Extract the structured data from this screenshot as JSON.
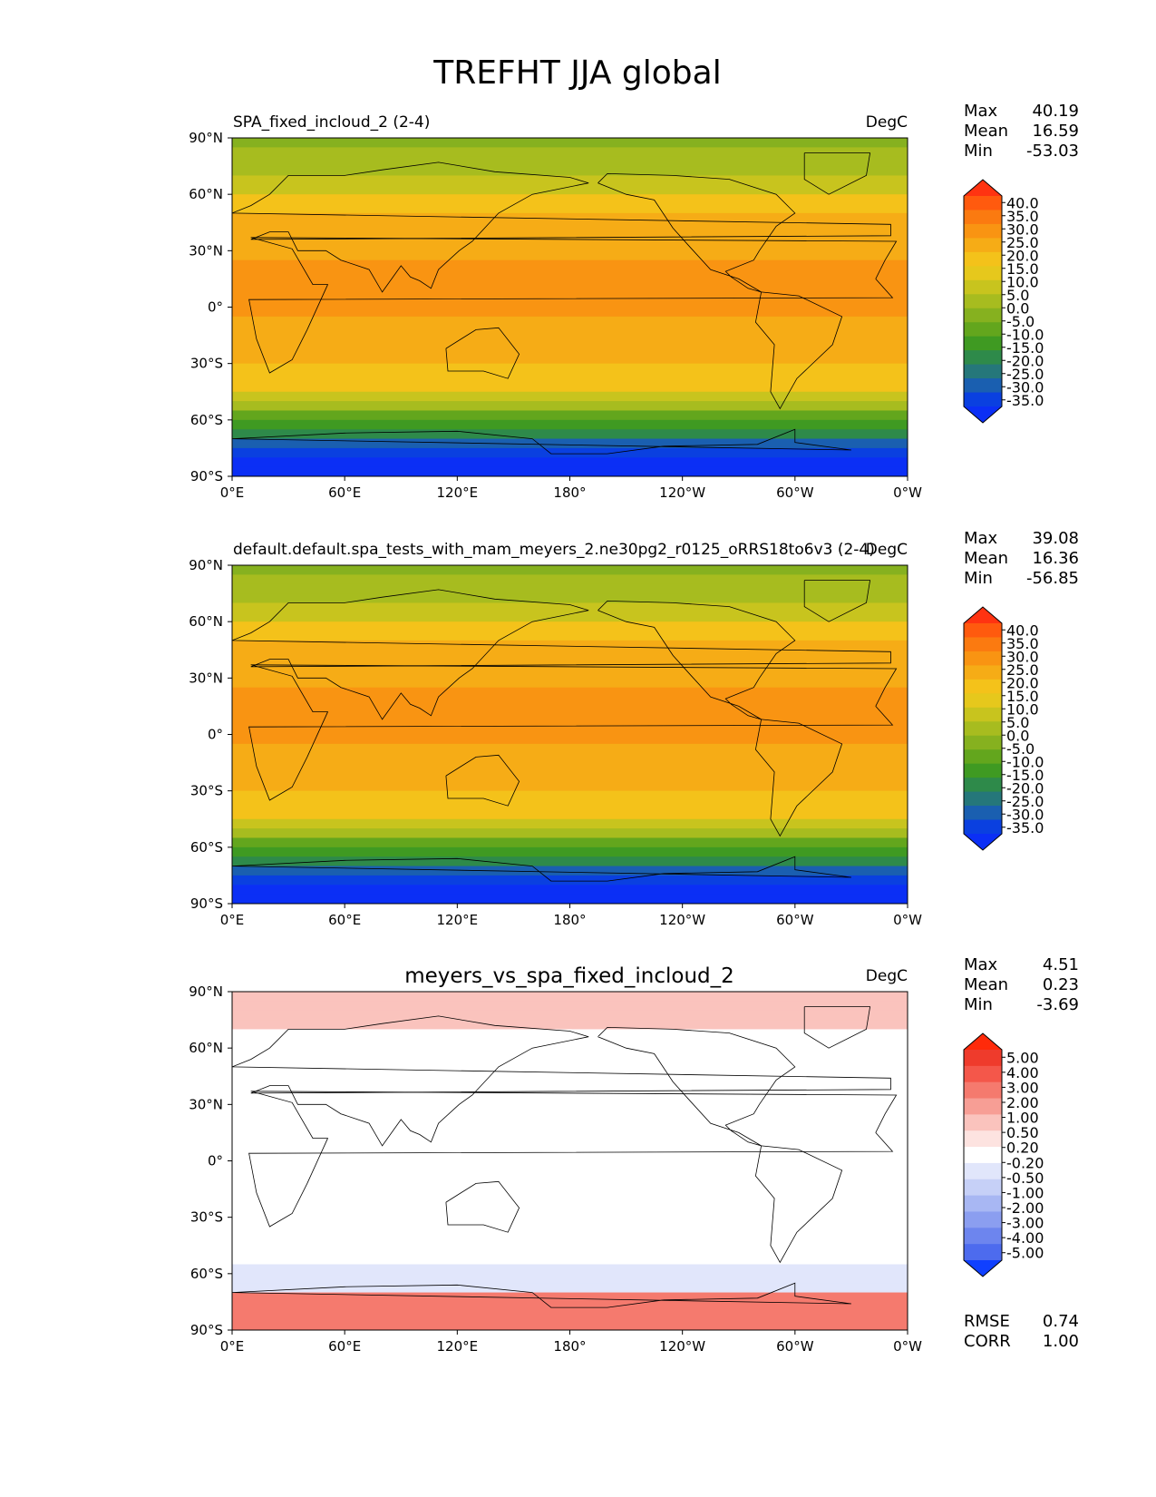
{
  "figure": {
    "title": "TREFHT JJA global"
  },
  "chart_data": [
    {
      "type": "heatmap",
      "title": "SPA_fixed_incloud_2 (2-4)",
      "units": "DegC",
      "xlabel": "",
      "ylabel": "",
      "xlim": [
        0,
        360
      ],
      "ylim": [
        -90,
        90
      ],
      "x_tick_labels": [
        "0°E",
        "60°E",
        "120°E",
        "180°",
        "120°W",
        "60°W",
        "0°W"
      ],
      "y_tick_labels": [
        "90°N",
        "60°N",
        "30°N",
        "0°",
        "30°S",
        "60°S",
        "90°S"
      ],
      "stats": [
        {
          "label": "Max",
          "value": "40.19"
        },
        {
          "label": "Mean",
          "value": "16.59"
        },
        {
          "label": "Min",
          "value": "-53.03"
        }
      ],
      "colorbar": {
        "levels": [
          "40.0",
          "35.0",
          "30.0",
          "25.0",
          "20.0",
          "15.0",
          "10.0",
          "5.0",
          "0.0",
          "-5.0",
          "-10.0",
          "-15.0",
          "-20.0",
          "-25.0",
          "-30.0",
          "-35.0"
        ],
        "colors": [
          "#ff3311",
          "#ff5a0e",
          "#fb7a10",
          "#f99412",
          "#f6ac16",
          "#f4c21a",
          "#e6c81c",
          "#c8c41e",
          "#a7bc1f",
          "#86b11f",
          "#63a61d",
          "#3f9a22",
          "#2e8a4a",
          "#25777a",
          "#1a5fb0",
          "#0a40e0",
          "#0b2ff5"
        ]
      }
    },
    {
      "type": "heatmap",
      "title": "default.default.spa_tests_with_mam_meyers_2.ne30pg2_r0125_oRRS18to6v3 (2-4)",
      "units": "DegC",
      "xlabel": "",
      "ylabel": "",
      "xlim": [
        0,
        360
      ],
      "ylim": [
        -90,
        90
      ],
      "x_tick_labels": [
        "0°E",
        "60°E",
        "120°E",
        "180°",
        "120°W",
        "60°W",
        "0°W"
      ],
      "y_tick_labels": [
        "90°N",
        "60°N",
        "30°N",
        "0°",
        "30°S",
        "60°S",
        "90°S"
      ],
      "stats": [
        {
          "label": "Max",
          "value": "39.08"
        },
        {
          "label": "Mean",
          "value": "16.36"
        },
        {
          "label": "Min",
          "value": "-56.85"
        }
      ],
      "colorbar": {
        "levels": [
          "40.0",
          "35.0",
          "30.0",
          "25.0",
          "20.0",
          "15.0",
          "10.0",
          "5.0",
          "0.0",
          "-5.0",
          "-10.0",
          "-15.0",
          "-20.0",
          "-25.0",
          "-30.0",
          "-35.0"
        ],
        "colors": [
          "#ff3311",
          "#ff5a0e",
          "#fb7a10",
          "#f99412",
          "#f6ac16",
          "#f4c21a",
          "#e6c81c",
          "#c8c41e",
          "#a7bc1f",
          "#86b11f",
          "#63a61d",
          "#3f9a22",
          "#2e8a4a",
          "#25777a",
          "#1a5fb0",
          "#0a40e0",
          "#0b2ff5"
        ]
      }
    },
    {
      "type": "heatmap",
      "title": "meyers_vs_spa_fixed_incloud_2",
      "units": "DegC",
      "xlabel": "",
      "ylabel": "",
      "xlim": [
        0,
        360
      ],
      "ylim": [
        -90,
        90
      ],
      "x_tick_labels": [
        "0°E",
        "60°E",
        "120°E",
        "180°",
        "120°W",
        "60°W",
        "0°W"
      ],
      "y_tick_labels": [
        "90°N",
        "60°N",
        "30°N",
        "0°",
        "30°S",
        "60°S",
        "90°S"
      ],
      "stats": [
        {
          "label": "Max",
          "value": "4.51"
        },
        {
          "label": "Mean",
          "value": "0.23"
        },
        {
          "label": "Min",
          "value": "-3.69"
        }
      ],
      "extra_stats": [
        {
          "label": "RMSE",
          "value": "0.74"
        },
        {
          "label": "CORR",
          "value": "1.00"
        }
      ],
      "colorbar": {
        "levels": [
          "5.00",
          "4.00",
          "3.00",
          "2.00",
          "1.00",
          "0.50",
          "0.20",
          "-0.20",
          "-0.50",
          "-1.00",
          "-2.00",
          "-3.00",
          "-4.00",
          "-5.00"
        ],
        "colors": [
          "#ff2a0a",
          "#ef3b2c",
          "#f4574a",
          "#f57a6e",
          "#f79e95",
          "#fac3bd",
          "#fde3e0",
          "#ffffff",
          "#e1e6fb",
          "#c6d0f7",
          "#a8b7f3",
          "#8b9ef0",
          "#6d85ee",
          "#4d6bee",
          "#1040ff"
        ]
      }
    }
  ]
}
